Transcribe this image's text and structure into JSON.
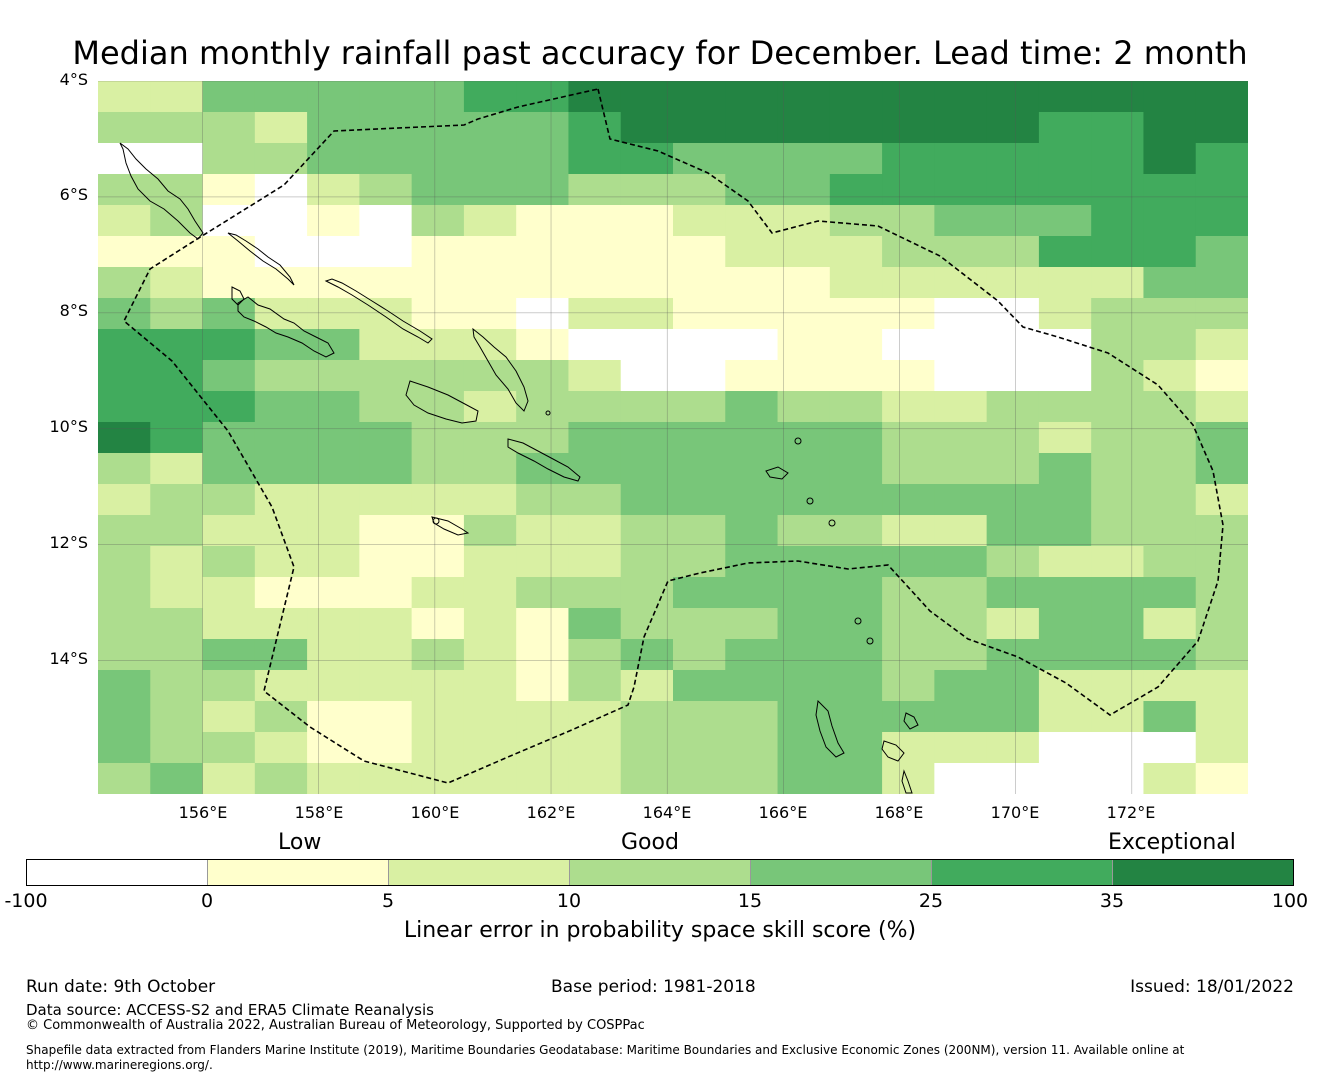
{
  "title": "Median monthly rainfall past accuracy for December. Lead time: 2 month",
  "map": {
    "lat_range": [
      -4,
      -16.3
    ],
    "lon_range": [
      154.2,
      174
    ],
    "lat_labels": [
      "4°S",
      "6°S",
      "8°S",
      "10°S",
      "12°S",
      "14°S"
    ],
    "lon_labels": [
      "156°E",
      "158°E",
      "160°E",
      "162°E",
      "164°E",
      "166°E",
      "168°E",
      "170°E",
      "172°E"
    ],
    "grid_rows": [
      "2244444556666666666666",
      "3332444445666666665566",
      "0033444445544445555565",
      "3310234443334455555555",
      "2300103211122233444555",
      "1110001111112223335554",
      "3211111111111122222244",
      "4342221102211111002333",
      "5554422210000110000332",
      "5543333332001111000321",
      "5554433233334332233332",
      "6544443334444443332334",
      "3244443344444443334334",
      "2332222233444444444332",
      "3322211322334332244333",
      "3232211222334444432233",
      "3221112233344443344443",
      "3322221214333443324423",
      "3344223213434443344443",
      "4332222213244443442222",
      "4323112222333444442242",
      "4332112222333442220002",
      "3423222222333442000021"
    ],
    "palette": [
      "#ffffff",
      "#ffffcc",
      "#d9f0a3",
      "#addd8e",
      "#78c679",
      "#41ab5d",
      "#238443"
    ]
  },
  "legend": {
    "categories": [
      "Low",
      "Good",
      "Exceptional"
    ],
    "ticks": [
      "-100",
      "0",
      "5",
      "10",
      "15",
      "25",
      "35",
      "100"
    ],
    "label": "Linear error in probability space skill score (%)"
  },
  "footer": {
    "run_date": "Run date: 9th October",
    "base_period": "Base period: 1981-2018",
    "issued": "Issued: 18/01/2022",
    "data_source": "Data source: ACCESS-S2 and ERA5 Climate Reanalysis",
    "copyright": "© Commonwealth of Australia 2022, Australian Bureau of Meteorology, Supported by COSPPac",
    "shapefile_line1": "Shapefile data extracted from Flanders Marine Institute (2019), Maritime Boundaries Geodatabase: Maritime Boundaries and Exclusive Economic Zones (200NM), version 11. Available online at",
    "shapefile_line2": "http://www.marineregions.org/."
  }
}
